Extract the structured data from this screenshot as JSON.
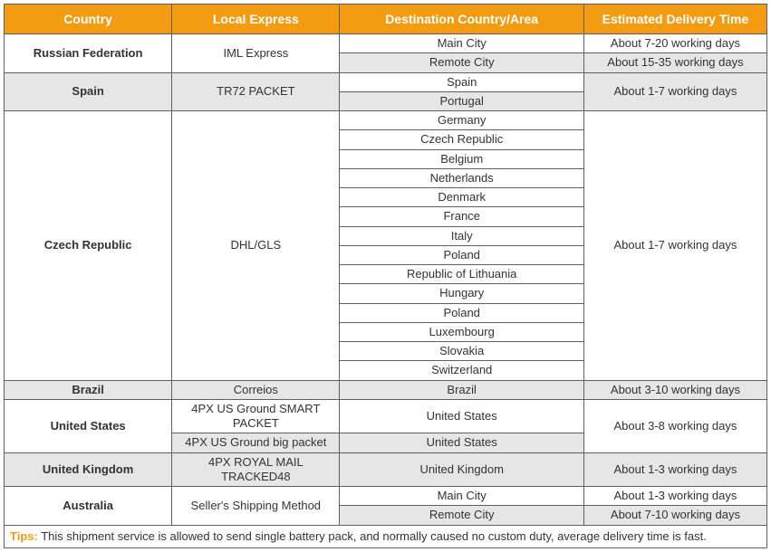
{
  "headers": {
    "country": "Country",
    "local_express": "Local Express",
    "destination": "Destination Country/Area",
    "delivery_time": "Estimated Delivery Time"
  },
  "rows": {
    "russia": {
      "country": "Russian Federation",
      "express": "IML Express",
      "dest1": "Main City",
      "time1": "About 7-20 working days",
      "dest2": "Remote City",
      "time2": "About 15-35 working days"
    },
    "spain": {
      "country": "Spain",
      "express": "TR72 PACKET",
      "dest1": "Spain",
      "dest2": "Portugal",
      "time": "About 1-7 working days"
    },
    "czech": {
      "country": "Czech Republic",
      "express": "DHL/GLS",
      "d0": "Germany",
      "d1": "Czech Republic",
      "d2": "Belgium",
      "d3": "Netherlands",
      "d4": "Denmark",
      "d5": "France",
      "d6": "Italy",
      "d7": "Poland",
      "d8": "Republic of Lithuania",
      "d9": "Hungary",
      "d10": "Poland",
      "d11": "Luxembourg",
      "d12": "Slovakia",
      "d13": "Switzerland",
      "time": "About 1-7 working days"
    },
    "brazil": {
      "country": "Brazil",
      "express": "Correios",
      "dest": "Brazil",
      "time": "About 3-10 working days"
    },
    "us": {
      "country": "United States",
      "express1": "4PX US Ground SMART PACKET",
      "express2": "4PX US Ground big packet",
      "dest1": "United States",
      "dest2": "United States",
      "time": "About 3-8 working days"
    },
    "uk": {
      "country": "United Kingdom",
      "express": "4PX ROYAL MAIL TRACKED48",
      "dest": "United Kingdom",
      "time": "About 1-3 working days"
    },
    "au": {
      "country": "Australia",
      "express": "Seller's Shipping Method",
      "dest1": "Main City",
      "time1": "About 1-3 working days",
      "dest2": "Remote City",
      "time2": "About 7-10 working days"
    }
  },
  "tips": {
    "label": "Tips:",
    "text": " This shipment service is allowed to send single battery pack, and normally caused no custom duty, average delivery time is fast."
  }
}
